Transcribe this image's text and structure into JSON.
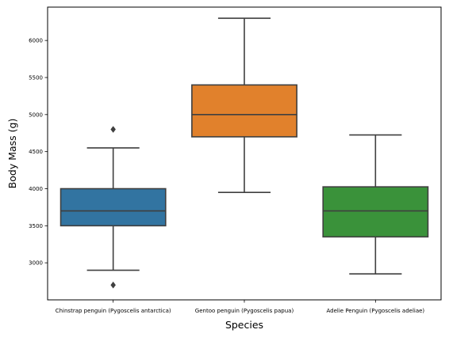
{
  "chart_data": {
    "type": "box",
    "xlabel": "Species",
    "ylabel": "Body Mass (g)",
    "ylim": [
      2500,
      6450
    ],
    "y_ticks": [
      3000,
      3500,
      4000,
      4500,
      5000,
      5500,
      6000
    ],
    "y_tick_labels": [
      "3000",
      "3500",
      "4000",
      "4500",
      "5000",
      "5500",
      "6000"
    ],
    "grid": false,
    "legend": "none",
    "categories": [
      "Chinstrap penguin (Pygoscelis antarctica)",
      "Gentoo penguin (Pygoscelis papua)",
      "Adelie Penguin (Pygoscelis adeliae)"
    ],
    "boxes": [
      {
        "category": "Chinstrap penguin (Pygoscelis antarctica)",
        "whisker_low": 2900,
        "q1": 3500,
        "median": 3700,
        "q3": 4000,
        "whisker_high": 4550,
        "outliers": [
          4800,
          2700
        ],
        "color": "#3274a1"
      },
      {
        "category": "Gentoo penguin (Pygoscelis papua)",
        "whisker_low": 3950,
        "q1": 4700,
        "median": 5000,
        "q3": 5400,
        "whisker_high": 6300,
        "outliers": [],
        "color": "#e1812c"
      },
      {
        "category": "Adelie Penguin (Pygoscelis adeliae)",
        "whisker_low": 2850,
        "q1": 3350,
        "median": 3700,
        "q3": 4025,
        "whisker_high": 4725,
        "outliers": [],
        "color": "#3a923a"
      }
    ],
    "line_color": "#3f3f3f"
  }
}
